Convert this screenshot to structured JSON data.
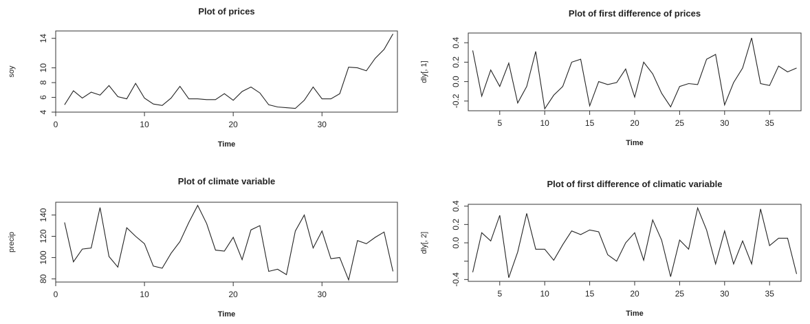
{
  "chart_data": [
    {
      "type": "line",
      "title": "Plot of prices",
      "xlabel": "Time",
      "ylabel": "soy",
      "xlim": [
        0,
        38.5
      ],
      "ylim": [
        4,
        15
      ],
      "xticks": [
        0,
        10,
        20,
        30
      ],
      "yticks": [
        4,
        6,
        8,
        10,
        14
      ],
      "x_start": 1,
      "values": [
        5.0,
        6.9,
        5.9,
        6.7,
        6.3,
        7.6,
        6.1,
        5.8,
        7.9,
        5.9,
        5.1,
        4.9,
        5.9,
        7.5,
        5.8,
        5.8,
        5.7,
        5.7,
        6.5,
        5.6,
        6.8,
        7.4,
        6.6,
        5.0,
        4.7,
        4.6,
        4.5,
        5.6,
        7.4,
        5.8,
        5.8,
        6.5,
        10.1,
        10.0,
        9.6,
        11.3,
        12.5,
        14.6
      ]
    },
    {
      "type": "line",
      "title": "Plot of first difference of prices",
      "xlabel": "Time",
      "ylabel": "dly[, 1]",
      "xlim": [
        1.5,
        38.5
      ],
      "ylim": [
        -0.3,
        0.5
      ],
      "xticks": [
        5,
        10,
        15,
        20,
        25,
        30,
        35
      ],
      "yticks": [
        -0.2,
        0.0,
        0.2,
        0.4
      ],
      "ytick_labels": [
        "-0.2",
        "0.0",
        "0.2",
        "0.4"
      ],
      "x_start": 2,
      "values": [
        0.32,
        -0.15,
        0.12,
        -0.05,
        0.19,
        -0.22,
        -0.05,
        0.31,
        -0.28,
        -0.14,
        -0.05,
        0.2,
        0.23,
        -0.25,
        0.0,
        -0.03,
        -0.01,
        0.13,
        -0.16,
        0.2,
        0.08,
        -0.12,
        -0.26,
        -0.05,
        -0.02,
        -0.03,
        0.23,
        0.28,
        -0.24,
        -0.01,
        0.14,
        0.45,
        -0.02,
        -0.04,
        0.16,
        0.1,
        0.14
      ]
    },
    {
      "type": "line",
      "title": "Plot of climate variable",
      "xlabel": "Time",
      "ylabel": "precip",
      "xlim": [
        0,
        38.5
      ],
      "ylim": [
        77,
        152
      ],
      "xticks": [
        0,
        10,
        20,
        30
      ],
      "yticks": [
        80,
        100,
        120,
        140
      ],
      "x_start": 1,
      "values": [
        133,
        96,
        108,
        109,
        147,
        101,
        91,
        128,
        120,
        113,
        92,
        90,
        104,
        115,
        133,
        149,
        132,
        107,
        106,
        119,
        98,
        126,
        130,
        87,
        89,
        84,
        125,
        140,
        109,
        125,
        99,
        100,
        79,
        116,
        113,
        119,
        124,
        87
      ]
    },
    {
      "type": "line",
      "title": "Plot of first difference of climatic variable",
      "xlabel": "Time",
      "ylabel": "dly[, 2]",
      "xlim": [
        1.5,
        38.5
      ],
      "ylim": [
        -0.42,
        0.42
      ],
      "xticks": [
        5,
        10,
        15,
        20,
        25,
        30,
        35
      ],
      "yticks": [
        -0.4,
        -0.2,
        0.0,
        0.2,
        0.4
      ],
      "ytick_labels": [
        "-0.4",
        "",
        "0.0",
        "0.2",
        "0.4"
      ],
      "x_start": 2,
      "values": [
        -0.32,
        0.11,
        0.02,
        0.3,
        -0.38,
        -0.1,
        0.32,
        -0.07,
        -0.07,
        -0.19,
        -0.02,
        0.13,
        0.09,
        0.14,
        0.12,
        -0.13,
        -0.2,
        0.0,
        0.11,
        -0.19,
        0.25,
        0.03,
        -0.37,
        0.03,
        -0.07,
        0.38,
        0.14,
        -0.23,
        0.13,
        -0.23,
        0.02,
        -0.23,
        0.37,
        -0.03,
        0.05,
        0.05,
        -0.34
      ]
    }
  ]
}
